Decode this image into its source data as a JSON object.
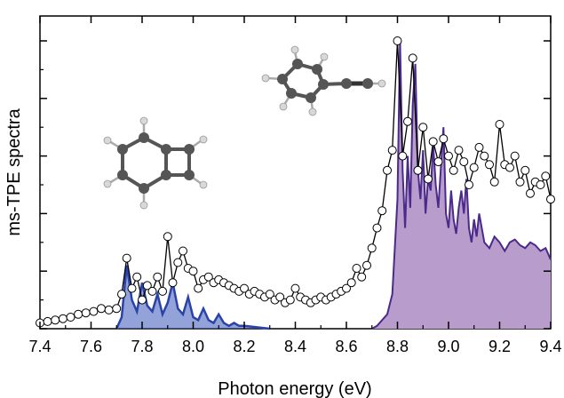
{
  "chart_data": {
    "type": "line",
    "title": "",
    "xlabel": "Photon energy (eV)",
    "ylabel": "ms-TPE spectra",
    "xlim": [
      7.4,
      9.4
    ],
    "ylim": [
      0,
      1.0
    ],
    "x_ticks": [
      "7.4",
      "7.6",
      "7.8",
      "8.0",
      "8.2",
      "8.4",
      "8.6",
      "8.8",
      "9.0",
      "9.2",
      "9.4"
    ],
    "y_ticks_unlabeled": true,
    "grid": false,
    "legend": "none",
    "series": [
      {
        "kind": "experiment-points",
        "color": "#000000",
        "marker": "open-circle",
        "x": [
          7.4,
          7.43,
          7.46,
          7.49,
          7.52,
          7.55,
          7.58,
          7.61,
          7.64,
          7.67,
          7.7,
          7.72,
          7.74,
          7.76,
          7.78,
          7.8,
          7.82,
          7.84,
          7.86,
          7.88,
          7.9,
          7.92,
          7.94,
          7.96,
          7.98,
          8.0,
          8.02,
          8.04,
          8.06,
          8.08,
          8.1,
          8.12,
          8.14,
          8.16,
          8.18,
          8.2,
          8.22,
          8.24,
          8.26,
          8.28,
          8.3,
          8.32,
          8.34,
          8.36,
          8.38,
          8.4,
          8.42,
          8.44,
          8.46,
          8.48,
          8.5,
          8.52,
          8.54,
          8.56,
          8.58,
          8.6,
          8.62,
          8.64,
          8.66,
          8.68,
          8.7,
          8.72,
          8.74,
          8.76,
          8.78,
          8.8,
          8.82,
          8.84,
          8.86,
          8.88,
          8.9,
          8.92,
          8.94,
          8.96,
          8.98,
          9.0,
          9.02,
          9.04,
          9.06,
          9.08,
          9.1,
          9.12,
          9.14,
          9.16,
          9.18,
          9.2,
          9.22,
          9.24,
          9.26,
          9.28,
          9.3,
          9.32,
          9.34,
          9.36,
          9.38,
          9.4
        ],
        "y": [
          0.02,
          0.025,
          0.03,
          0.035,
          0.04,
          0.05,
          0.055,
          0.06,
          0.07,
          0.065,
          0.07,
          0.12,
          0.245,
          0.14,
          0.18,
          0.1,
          0.15,
          0.13,
          0.18,
          0.13,
          0.32,
          0.16,
          0.23,
          0.27,
          0.21,
          0.2,
          0.14,
          0.17,
          0.18,
          0.16,
          0.17,
          0.16,
          0.15,
          0.14,
          0.13,
          0.14,
          0.12,
          0.13,
          0.12,
          0.11,
          0.12,
          0.1,
          0.11,
          0.09,
          0.1,
          0.14,
          0.11,
          0.1,
          0.09,
          0.1,
          0.11,
          0.1,
          0.11,
          0.12,
          0.13,
          0.14,
          0.16,
          0.21,
          0.18,
          0.22,
          0.28,
          0.35,
          0.41,
          0.55,
          0.62,
          1.0,
          0.6,
          0.72,
          0.94,
          0.55,
          0.7,
          0.52,
          0.65,
          0.58,
          0.66,
          0.6,
          0.55,
          0.62,
          0.58,
          0.5,
          0.56,
          0.63,
          0.6,
          0.57,
          0.51,
          0.71,
          0.57,
          0.56,
          0.6,
          0.51,
          0.55,
          0.47,
          0.51,
          0.5,
          0.53,
          0.45
        ]
      },
      {
        "kind": "simulation-blue",
        "color": "#2a43a8",
        "x": [
          7.7,
          7.72,
          7.74,
          7.76,
          7.78,
          7.8,
          7.82,
          7.84,
          7.86,
          7.88,
          7.9,
          7.92,
          7.94,
          7.96,
          7.98,
          8.0,
          8.02,
          8.04,
          8.06,
          8.08,
          8.1,
          8.12,
          8.14,
          8.16,
          8.18,
          8.2,
          8.25,
          8.3
        ],
        "y": [
          0.0,
          0.04,
          0.22,
          0.1,
          0.06,
          0.16,
          0.08,
          0.06,
          0.12,
          0.05,
          0.09,
          0.16,
          0.07,
          0.05,
          0.11,
          0.04,
          0.03,
          0.07,
          0.03,
          0.02,
          0.05,
          0.02,
          0.01,
          0.02,
          0.01,
          0.01,
          0.005,
          0.0
        ]
      },
      {
        "kind": "simulation-purple",
        "color": "#4a2a8a",
        "fill": "#b89ccc",
        "x": [
          8.7,
          8.72,
          8.74,
          8.76,
          8.78,
          8.8,
          8.81,
          8.82,
          8.83,
          8.84,
          8.85,
          8.86,
          8.87,
          8.88,
          8.89,
          8.9,
          8.91,
          8.92,
          8.93,
          8.94,
          8.95,
          8.96,
          8.97,
          8.98,
          8.99,
          9.0,
          9.01,
          9.02,
          9.03,
          9.04,
          9.05,
          9.06,
          9.07,
          9.08,
          9.09,
          9.1,
          9.11,
          9.12,
          9.14,
          9.16,
          9.18,
          9.2,
          9.22,
          9.24,
          9.26,
          9.28,
          9.3,
          9.32,
          9.34,
          9.36,
          9.38,
          9.4
        ],
        "y": [
          0.0,
          0.01,
          0.03,
          0.05,
          0.12,
          0.45,
          1.0,
          0.55,
          0.35,
          0.6,
          0.42,
          0.78,
          0.92,
          0.55,
          0.45,
          0.62,
          0.4,
          0.52,
          0.48,
          0.64,
          0.5,
          0.42,
          0.56,
          0.7,
          0.4,
          0.35,
          0.48,
          0.38,
          0.33,
          0.42,
          0.48,
          0.4,
          0.52,
          0.35,
          0.3,
          0.38,
          0.32,
          0.4,
          0.3,
          0.28,
          0.32,
          0.3,
          0.27,
          0.3,
          0.31,
          0.29,
          0.28,
          0.3,
          0.29,
          0.27,
          0.28,
          0.24
        ]
      }
    ]
  },
  "molecules": [
    {
      "name": "benzocyclobutadiene-molecule"
    },
    {
      "name": "phenylacetylene-molecule"
    }
  ]
}
